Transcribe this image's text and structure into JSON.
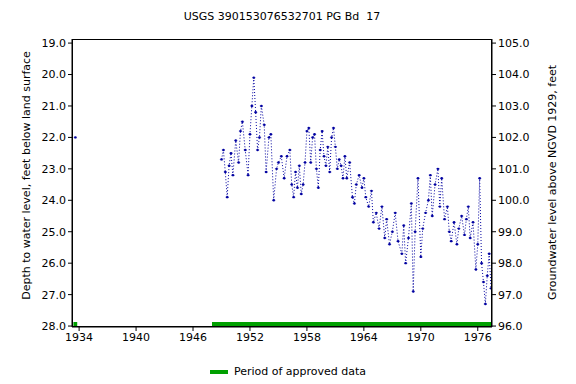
{
  "chart_data": {
    "type": "line",
    "title": "USGS 390153076532701 PG Bd  17",
    "y_label": "Depth to water level, feet below land surface",
    "y2_label": "Groundwater level above NGVD 1929, feet",
    "x": [
      1933.6,
      1948.9,
      1949.0,
      1949.2,
      1949.4,
      1949.6,
      1949.8,
      1950.0,
      1950.2,
      1950.5,
      1950.8,
      1951.0,
      1951.2,
      1951.5,
      1951.8,
      1952.0,
      1952.2,
      1952.4,
      1952.6,
      1952.8,
      1953.0,
      1953.2,
      1953.5,
      1953.7,
      1954.0,
      1954.2,
      1954.5,
      1954.8,
      1955.0,
      1955.3,
      1955.6,
      1955.9,
      1956.2,
      1956.4,
      1956.6,
      1956.8,
      1957.0,
      1957.2,
      1957.4,
      1957.6,
      1957.8,
      1958.0,
      1958.2,
      1958.4,
      1958.6,
      1958.8,
      1959.0,
      1959.2,
      1959.4,
      1959.6,
      1959.8,
      1960.0,
      1960.2,
      1960.4,
      1960.6,
      1960.8,
      1961.0,
      1961.2,
      1961.4,
      1961.6,
      1961.8,
      1962.0,
      1962.2,
      1962.5,
      1962.8,
      1963.0,
      1963.2,
      1963.5,
      1963.8,
      1964.0,
      1964.2,
      1964.5,
      1964.8,
      1965.0,
      1965.3,
      1965.6,
      1965.9,
      1966.2,
      1966.4,
      1966.7,
      1967.0,
      1967.3,
      1967.6,
      1968.0,
      1968.2,
      1968.4,
      1968.7,
      1969.0,
      1969.2,
      1969.4,
      1969.7,
      1970.0,
      1970.2,
      1970.5,
      1970.8,
      1971.0,
      1971.2,
      1971.5,
      1971.8,
      1972.0,
      1972.2,
      1972.5,
      1972.8,
      1973.0,
      1973.2,
      1973.5,
      1973.8,
      1974.0,
      1974.3,
      1974.6,
      1974.8,
      1975.0,
      1975.2,
      1975.5,
      1975.8,
      1976.0,
      1976.2,
      1976.4,
      1976.6,
      1976.8,
      1977.0,
      1977.2,
      1977.4
    ],
    "series": [
      {
        "name": "Depth to water level",
        "color": "#0000a0",
        "marker": "dot",
        "line_style": "dotted",
        "values": [
          22.0,
          null,
          22.7,
          22.4,
          23.1,
          23.9,
          22.9,
          22.5,
          23.2,
          22.1,
          22.8,
          21.8,
          21.5,
          22.4,
          23.2,
          21.9,
          21.0,
          20.1,
          21.2,
          22.4,
          22.0,
          21.0,
          21.6,
          23.1,
          22.0,
          21.9,
          24.0,
          23.0,
          22.8,
          22.6,
          23.3,
          22.6,
          22.4,
          23.5,
          23.9,
          23.1,
          23.6,
          22.9,
          23.8,
          23.5,
          22.8,
          21.8,
          21.7,
          22.8,
          22.0,
          21.9,
          23.0,
          23.6,
          22.4,
          21.8,
          22.6,
          22.9,
          22.3,
          23.1,
          22.0,
          21.7,
          22.3,
          23.0,
          22.7,
          22.9,
          23.3,
          22.6,
          23.3,
          22.8,
          23.9,
          24.1,
          23.5,
          23.2,
          23.6,
          23.3,
          23.9,
          24.2,
          23.7,
          24.7,
          24.4,
          24.9,
          24.2,
          25.2,
          24.6,
          25.4,
          25.0,
          24.4,
          25.3,
          25.7,
          24.8,
          26.0,
          25.2,
          24.1,
          26.9,
          25.0,
          23.3,
          25.8,
          24.9,
          24.4,
          24.0,
          23.2,
          24.5,
          23.5,
          23.0,
          24.2,
          23.3,
          24.6,
          24.2,
          25.0,
          25.3,
          24.7,
          25.4,
          24.9,
          24.5,
          25.1,
          24.6,
          24.2,
          25.2,
          24.7,
          26.2,
          25.4,
          23.3,
          26.0,
          26.6,
          27.3,
          26.4,
          25.7,
          26.8
        ]
      }
    ],
    "xlim": [
      1933.25,
      1977.5
    ],
    "xticks": [
      1934,
      1940,
      1946,
      1952,
      1958,
      1964,
      1970,
      1976
    ],
    "ylim": [
      28.03,
      18.87
    ],
    "yticks": [
      {
        "value": 19,
        "label": "19.0"
      },
      {
        "value": 20,
        "label": "20.0"
      },
      {
        "value": 21,
        "label": "21.0"
      },
      {
        "value": 22,
        "label": "22.0"
      },
      {
        "value": 23,
        "label": "23.0"
      },
      {
        "value": 24,
        "label": "24.0"
      },
      {
        "value": 25,
        "label": "25.0"
      },
      {
        "value": 26,
        "label": "26.0"
      },
      {
        "value": 27,
        "label": "27.0"
      },
      {
        "value": 28,
        "label": "28.0"
      }
    ],
    "y2lim": [
      95.97,
      105.13
    ],
    "y2ticks": [
      {
        "value": 96,
        "label": "96.0"
      },
      {
        "value": 97,
        "label": "97.0"
      },
      {
        "value": 98,
        "label": "98.0"
      },
      {
        "value": 99,
        "label": "99.0"
      },
      {
        "value": 100,
        "label": "100.0"
      },
      {
        "value": 101,
        "label": "101.0"
      },
      {
        "value": 102,
        "label": "102.0"
      },
      {
        "value": 103,
        "label": "103.0"
      },
      {
        "value": 104,
        "label": "104.0"
      },
      {
        "value": 105,
        "label": "105.0"
      }
    ],
    "approved_periods": {
      "name": "Period of approved data",
      "color": "#00a000",
      "ranges": [
        [
          1933.4,
          1933.8
        ],
        [
          1948.0,
          1977.5
        ]
      ]
    },
    "grid": false
  }
}
